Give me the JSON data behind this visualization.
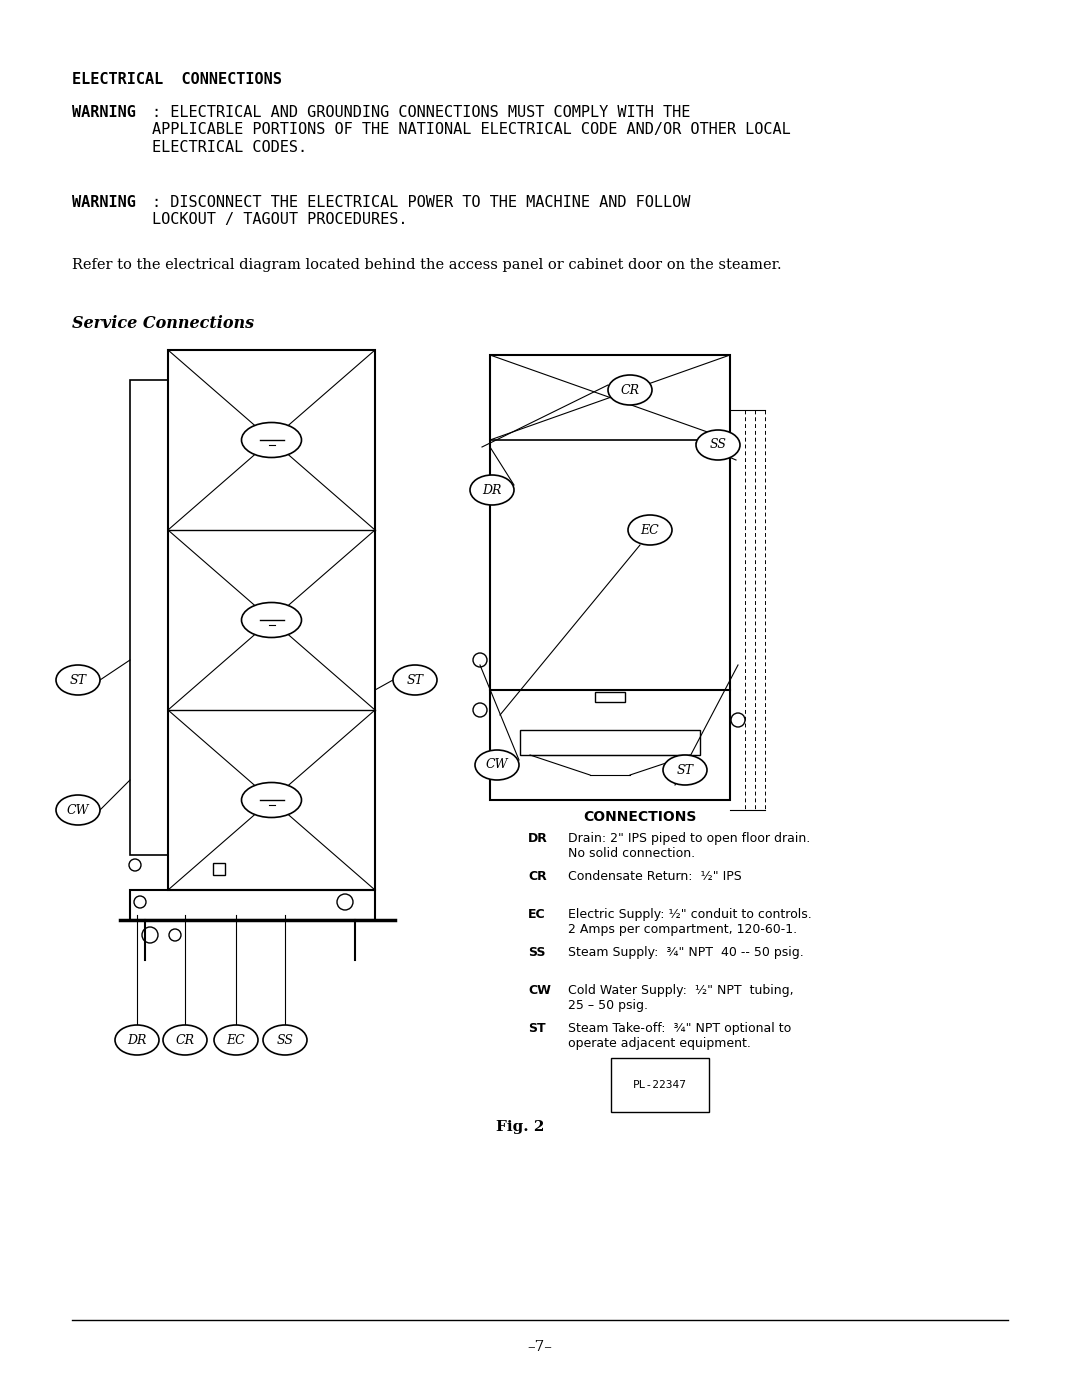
{
  "bg_color": "#ffffff",
  "title_electrical": "ELECTRICAL  CONNECTIONS",
  "warning1_bold": "WARNING",
  "warning1_text": ": ELECTRICAL AND GROUNDING CONNECTIONS MUST COMPLY WITH THE\nAPPLICABLE PORTIONS OF THE NATIONAL ELECTRICAL CODE AND/OR OTHER LOCAL\nELECTRICAL CODES.",
  "warning2_bold": "WARNING",
  "warning2_text": ": DISCONNECT THE ELECTRICAL POWER TO THE MACHINE AND FOLLOW\nLOCKOUT / TAGOUT PROCEDURES.",
  "refer_text": "Refer to the electrical diagram located behind the access panel or cabinet door on the steamer.",
  "service_connections_title": "Service Connections",
  "connections_title": "CONNECTIONS",
  "connections_list": [
    [
      "DR",
      "Drain: 2\" IPS piped to open floor drain.\nNo solid connection."
    ],
    [
      "CR",
      "Condensate Return:  ½\" IPS"
    ],
    [
      "EC",
      "Electric Supply: ½\" conduit to controls.\n2 Amps per compartment, 120-60-1."
    ],
    [
      "SS",
      "Steam Supply:  ¾\" NPT  40 -- 50 psig."
    ],
    [
      "CW",
      "Cold Water Supply:  ½\" NPT  tubing,\n25 – 50 psig."
    ],
    [
      "ST",
      "Steam Take-off:  ¾\" NPT optional to\noperate adjacent equipment."
    ]
  ],
  "part_number": "PL-22347",
  "fig_label": "Fig. 2",
  "page_number": "–7–"
}
